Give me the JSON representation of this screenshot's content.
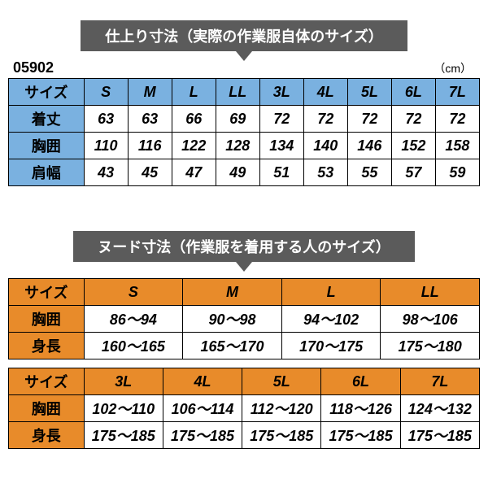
{
  "banner1": "仕上り寸法（実際の作業服自体のサイズ）",
  "code": "05902",
  "unit": "（cm）",
  "table1": {
    "header_color": "#7ab1e0",
    "border_color": "#000000",
    "font_size": 18,
    "rows": [
      {
        "label": "サイズ",
        "cells": [
          "S",
          "M",
          "L",
          "LL",
          "3L",
          "4L",
          "5L",
          "6L",
          "7L"
        ],
        "is_header": true
      },
      {
        "label": "着丈",
        "cells": [
          "63",
          "63",
          "66",
          "69",
          "72",
          "72",
          "72",
          "72",
          "72"
        ]
      },
      {
        "label": "胸囲",
        "cells": [
          "110",
          "116",
          "122",
          "128",
          "134",
          "140",
          "146",
          "152",
          "158"
        ]
      },
      {
        "label": "肩幅",
        "cells": [
          "43",
          "45",
          "47",
          "49",
          "51",
          "53",
          "55",
          "57",
          "59"
        ]
      }
    ]
  },
  "banner2": "ヌード寸法（作業服を着用する人のサイズ）",
  "table2a": {
    "header_color": "#e88b2a",
    "rows": [
      {
        "label": "サイズ",
        "cells": [
          "S",
          "M",
          "L",
          "LL"
        ],
        "is_header": true
      },
      {
        "label": "胸囲",
        "cells": [
          "86～94",
          "90～98",
          "94～102",
          "98～106"
        ]
      },
      {
        "label": "身長",
        "cells": [
          "160～165",
          "165～170",
          "170～175",
          "175～180"
        ]
      }
    ]
  },
  "table2b": {
    "header_color": "#e88b2a",
    "rows": [
      {
        "label": "サイズ",
        "cells": [
          "3L",
          "4L",
          "5L",
          "6L",
          "7L"
        ],
        "is_header": true
      },
      {
        "label": "胸囲",
        "cells": [
          "102～110",
          "106～114",
          "112～120",
          "118～126",
          "124～132"
        ]
      },
      {
        "label": "身長",
        "cells": [
          "175～185",
          "175～185",
          "175～185",
          "175～185",
          "175～185"
        ]
      }
    ]
  }
}
